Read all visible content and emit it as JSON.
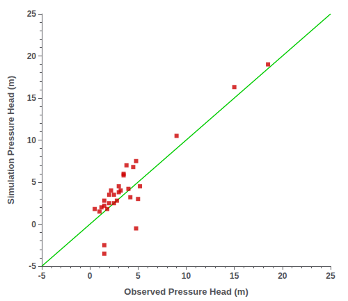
{
  "chart_data": {
    "type": "scatter",
    "xlabel": "Observed Pressure Head (m)",
    "ylabel": "Simulation Pressure Head (m)",
    "xlim": [
      -5,
      25
    ],
    "ylim": [
      -5,
      25
    ],
    "xticks": [
      -5,
      0,
      5,
      10,
      15,
      20,
      25
    ],
    "yticks": [
      -5,
      0,
      5,
      10,
      15,
      20,
      25
    ],
    "grid": false,
    "series": [
      {
        "type": "line",
        "color": "#00cc00",
        "line_style": "solid",
        "x": [
          -5,
          25
        ],
        "values": [
          -5,
          25
        ]
      },
      {
        "type": "scatter",
        "color": "#cc0000",
        "marker": "square",
        "x": [
          0.5,
          1.0,
          1.2,
          1.5,
          1.5,
          1.8,
          2.0,
          2.0,
          2.2,
          2.5,
          2.5,
          2.8,
          3.0,
          3.0,
          3.2,
          3.5,
          3.5,
          3.8,
          4.0,
          4.2,
          4.5,
          4.8,
          5.0,
          5.2,
          1.5,
          1.5,
          4.8,
          9.0,
          15.0,
          18.5
        ],
        "values": [
          1.8,
          1.5,
          2.0,
          2.2,
          2.8,
          1.8,
          2.5,
          3.5,
          4.0,
          2.5,
          3.5,
          2.8,
          3.8,
          4.5,
          4.0,
          5.8,
          6.0,
          7.0,
          4.2,
          3.2,
          6.8,
          7.5,
          3.0,
          4.5,
          -2.5,
          -3.5,
          -0.5,
          10.5,
          16.3,
          19.0
        ]
      }
    ]
  }
}
